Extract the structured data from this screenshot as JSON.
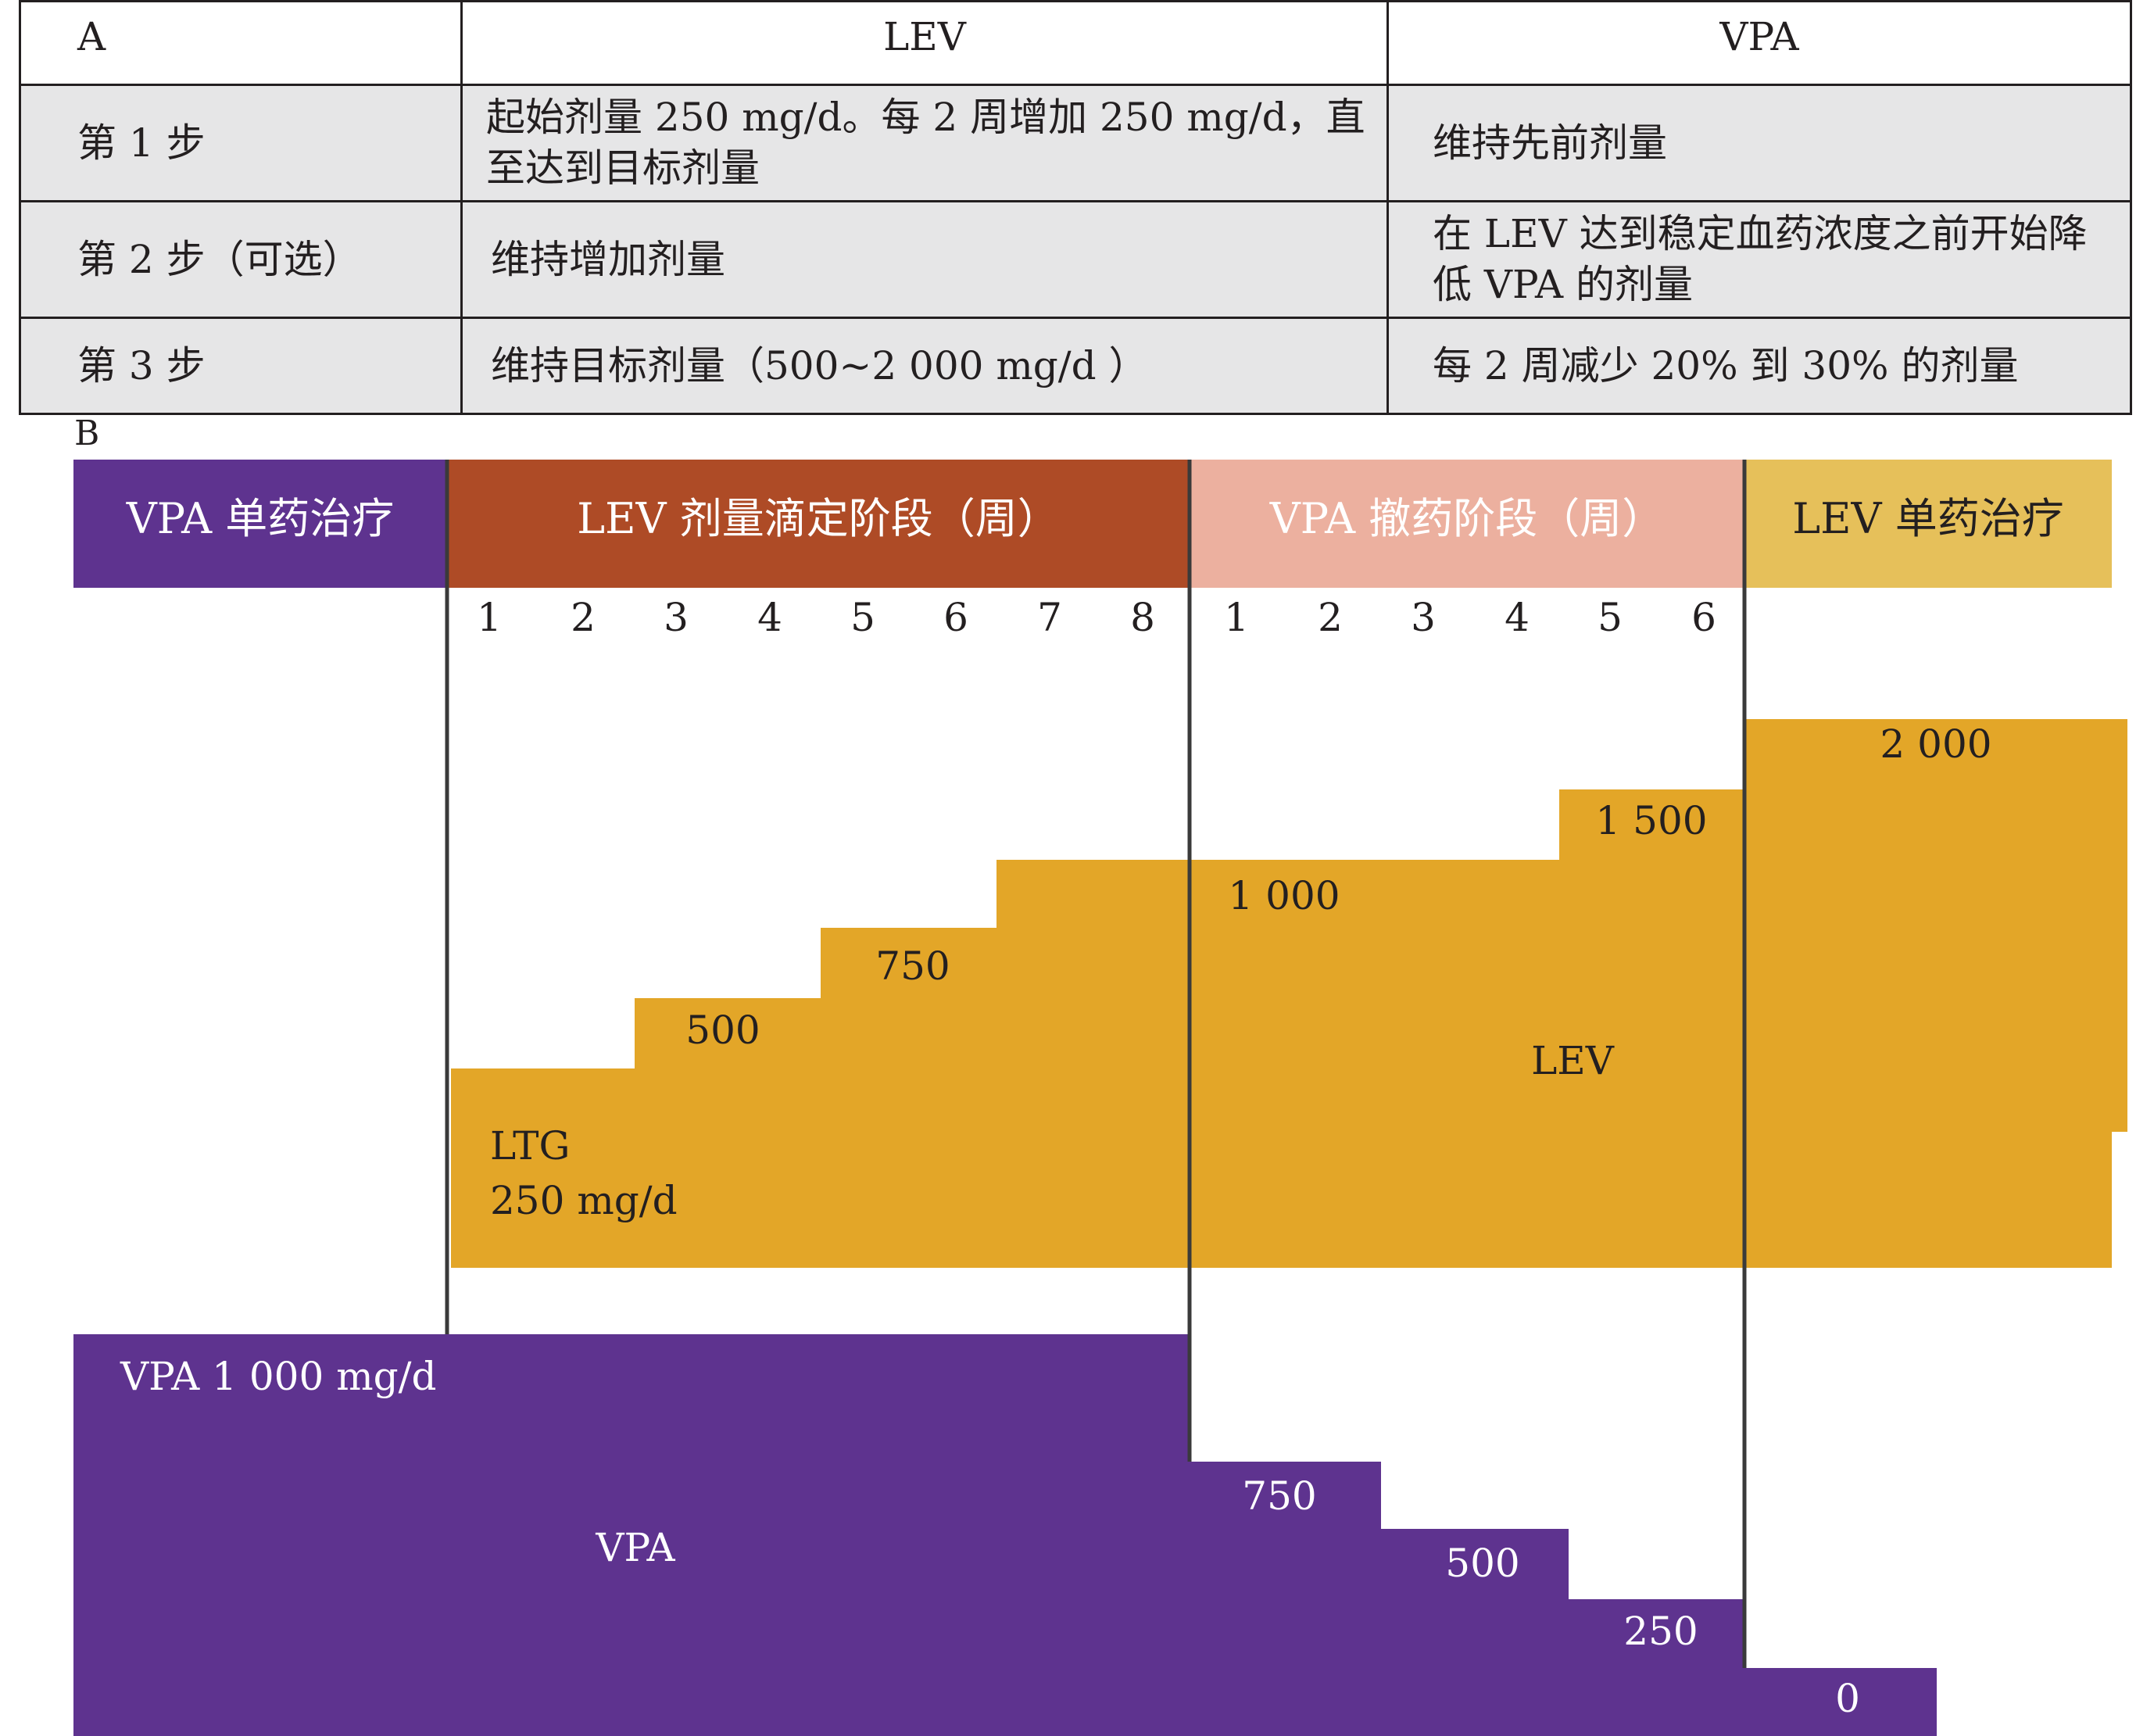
{
  "panel_a": {
    "label": "A",
    "headers": {
      "step": "",
      "lev": "LEV",
      "vpa": "VPA"
    },
    "rows": [
      {
        "step": "第 1  步",
        "lev": "起始剂量 250 mg/d。每 2 周增加 250 mg/d，直至达到目标剂量",
        "vpa": "维持先前剂量"
      },
      {
        "step": "第 2  步（可选）",
        "lev": "维持增加剂量",
        "vpa": "在 LEV 达到稳定血药浓度之前开始降低 VPA 的剂量"
      },
      {
        "step": "第 3  步",
        "lev": "维持目标剂量（500~2 000 mg/d ）",
        "vpa": "每 2 周减少 20% 到 30% 的剂量"
      }
    ]
  },
  "panel_b": {
    "label": "B",
    "phases": [
      {
        "label": "VPA 单药治疗",
        "color": "#5e338f",
        "text_color": "#ffffff"
      },
      {
        "label": "LEV 剂量滴定阶段（周）",
        "color": "#ae4b26",
        "text_color": "#ffffff"
      },
      {
        "label": "VPA 撤药阶段（周）",
        "color": "#ecb09f",
        "text_color": "#ffffff"
      },
      {
        "label": "LEV 单药治疗",
        "color": "#e6c05a",
        "text_color": "#231f20"
      }
    ],
    "titration_weeks": [
      "1",
      "2",
      "3",
      "4",
      "5",
      "6",
      "7",
      "8"
    ],
    "withdrawal_weeks": [
      "1",
      "2",
      "3",
      "4",
      "5",
      "6"
    ],
    "lev": {
      "color": "#e3a628",
      "drug_label": "LEV",
      "start_label_line1": "LTG",
      "start_label_line2": "250 mg/d",
      "dose_steps": [
        "500",
        "750",
        "1 000",
        "1 500",
        "2 000"
      ]
    },
    "vpa": {
      "color": "#5e338f",
      "drug_label": "VPA",
      "start_label": "VPA 1 000 mg/d",
      "dose_steps": [
        "750",
        "500",
        "250",
        "0"
      ]
    }
  }
}
